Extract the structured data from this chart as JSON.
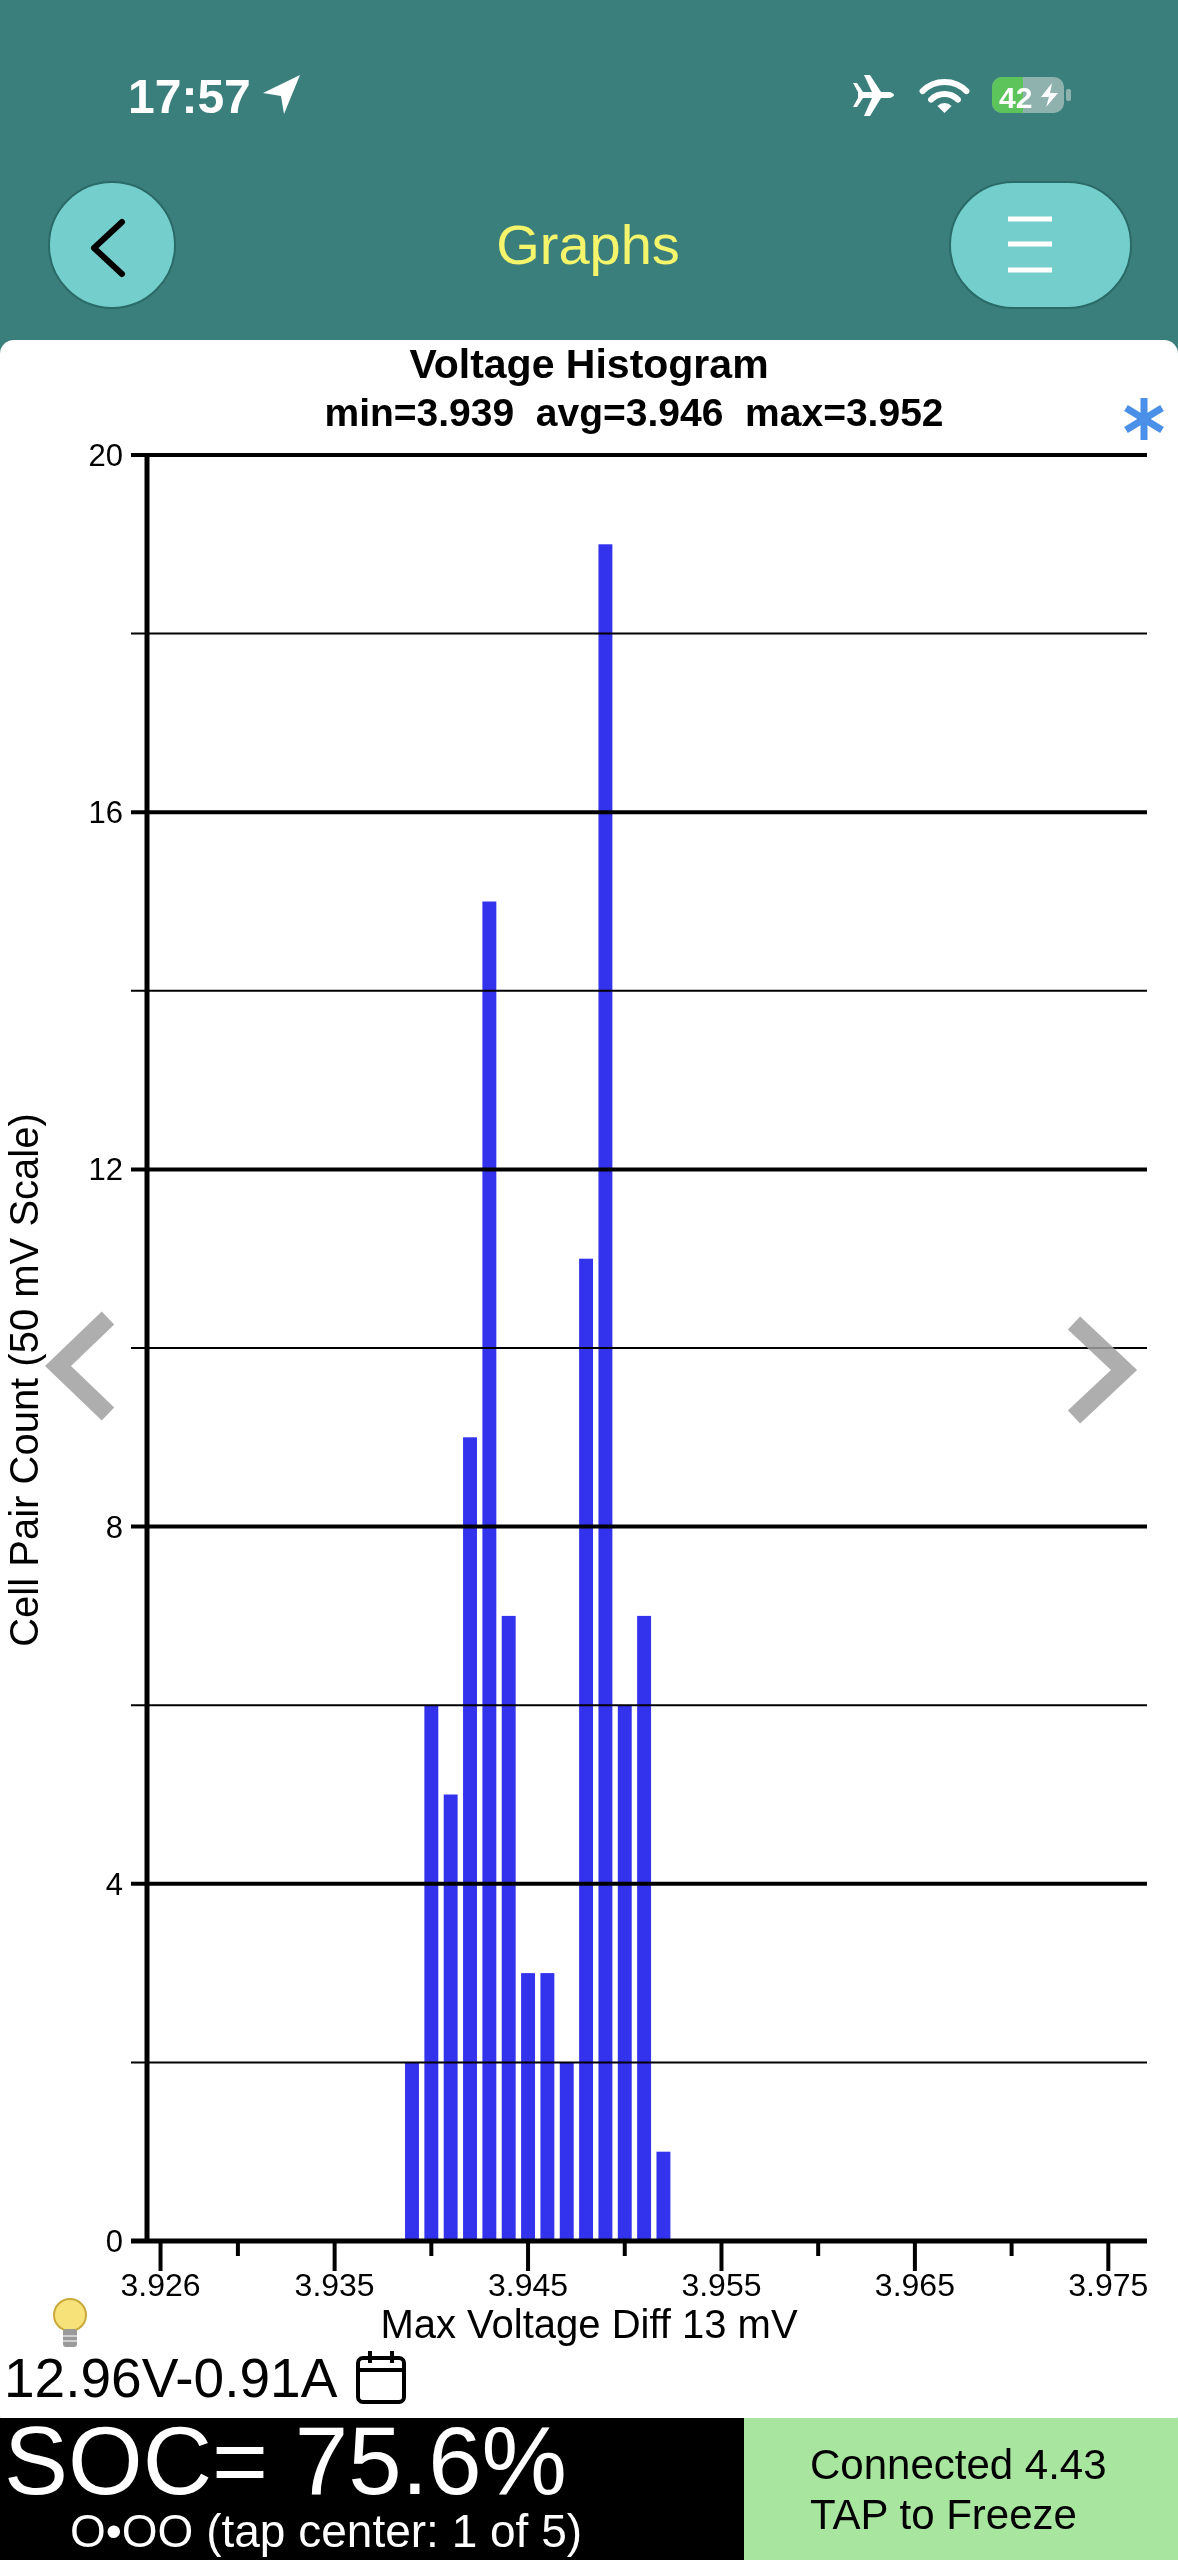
{
  "chart_data": {
    "type": "histogram",
    "title": "Voltage Histogram",
    "subtitle": "min=3.939  avg=3.946  max=3.952",
    "xlabel": "Max Voltage Diff 13 mV",
    "ylabel": "Cell Pair Count (50 mV Scale)",
    "bins": [
      3.9385,
      3.9395,
      3.9405,
      3.9415,
      3.9425,
      3.9435,
      3.9445,
      3.9455,
      3.9465,
      3.9475,
      3.9485,
      3.9495,
      3.9505,
      3.9515,
      3.9525
    ],
    "values": [
      2,
      6,
      5,
      9,
      15,
      7,
      3,
      3,
      2,
      11,
      19,
      6,
      7,
      1
    ],
    "color": "#3333ee",
    "xlim": [
      3.9253,
      3.977
    ],
    "xticks": [
      3.926,
      {
        "value": 3.93,
        "label": null
      },
      3.935,
      {
        "value": 3.94,
        "label": null
      },
      3.945,
      {
        "value": 3.95,
        "label": null
      },
      3.955,
      {
        "value": 3.96,
        "label": null
      },
      3.965,
      {
        "value": 3.97,
        "label": null
      },
      3.975
    ],
    "ylim": [
      0,
      20
    ],
    "yticks": [
      0,
      {
        "value": 2,
        "label": null
      },
      4,
      {
        "value": 6,
        "label": null
      },
      8,
      {
        "value": 10,
        "label": null
      },
      12,
      {
        "value": 14,
        "label": null
      },
      16,
      {
        "value": 18,
        "label": null
      },
      20
    ],
    "grid": "y",
    "annotations": [
      "17:57",
      "42",
      "Graphs",
      "12.96V-0.91A",
      "SOC= 75.6%",
      "O•OO (tap center: 1 of 5)",
      "Connected 4.43",
      "TAP to Freeze"
    ]
  }
}
